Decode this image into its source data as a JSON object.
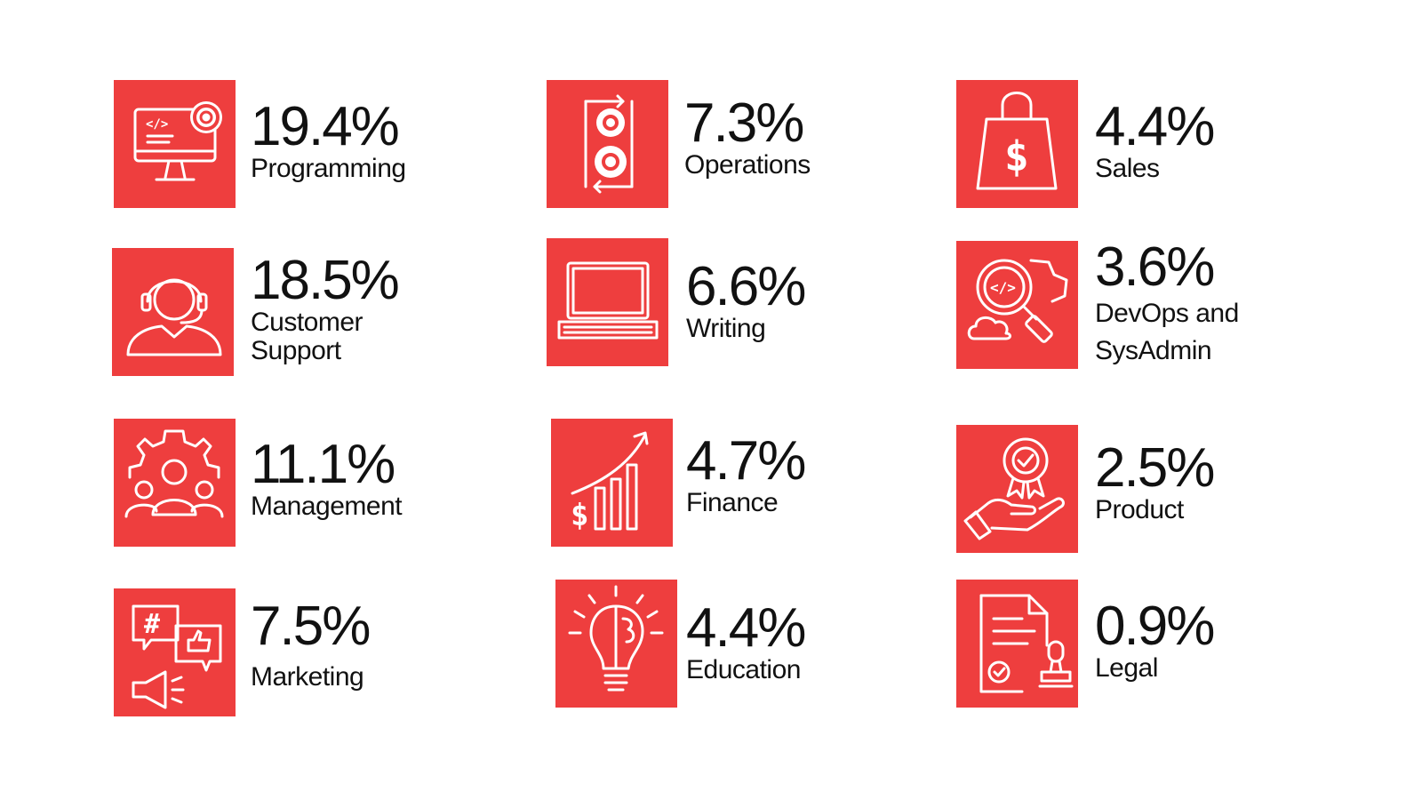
{
  "theme": {
    "accent": "#ee3e3e",
    "text": "#111111",
    "background": "#ffffff"
  },
  "stats": {
    "programming": {
      "percent": "19.4%",
      "label": "Programming",
      "icon": "computer-gear-icon"
    },
    "customer_support": {
      "percent": "18.5%",
      "label": "Customer Support",
      "icon": "headset-agent-icon"
    },
    "management": {
      "percent": "11.1%",
      "label": "Management",
      "icon": "team-gear-icon"
    },
    "marketing": {
      "percent": "7.5%",
      "label": "Marketing",
      "icon": "social-megaphone-icon"
    },
    "operations": {
      "percent": "7.3%",
      "label": "Operations",
      "icon": "gears-cycle-icon"
    },
    "writing": {
      "percent": "6.6%",
      "label": "Writing",
      "icon": "laptop-icon"
    },
    "finance": {
      "percent": "4.7%",
      "label": "Finance",
      "icon": "growth-chart-icon"
    },
    "education": {
      "percent": "4.4%",
      "label": "Education",
      "icon": "lightbulb-brain-icon"
    },
    "sales": {
      "percent": "4.4%",
      "label": "Sales",
      "icon": "shopping-bag-dollar-icon"
    },
    "devops": {
      "percent": "3.6%",
      "label": "DevOps and SysAdmin",
      "icon": "code-search-cloud-icon"
    },
    "product": {
      "percent": "2.5%",
      "label": "Product",
      "icon": "hand-award-icon"
    },
    "legal": {
      "percent": "0.9%",
      "label": "Legal",
      "icon": "document-stamp-icon"
    }
  }
}
